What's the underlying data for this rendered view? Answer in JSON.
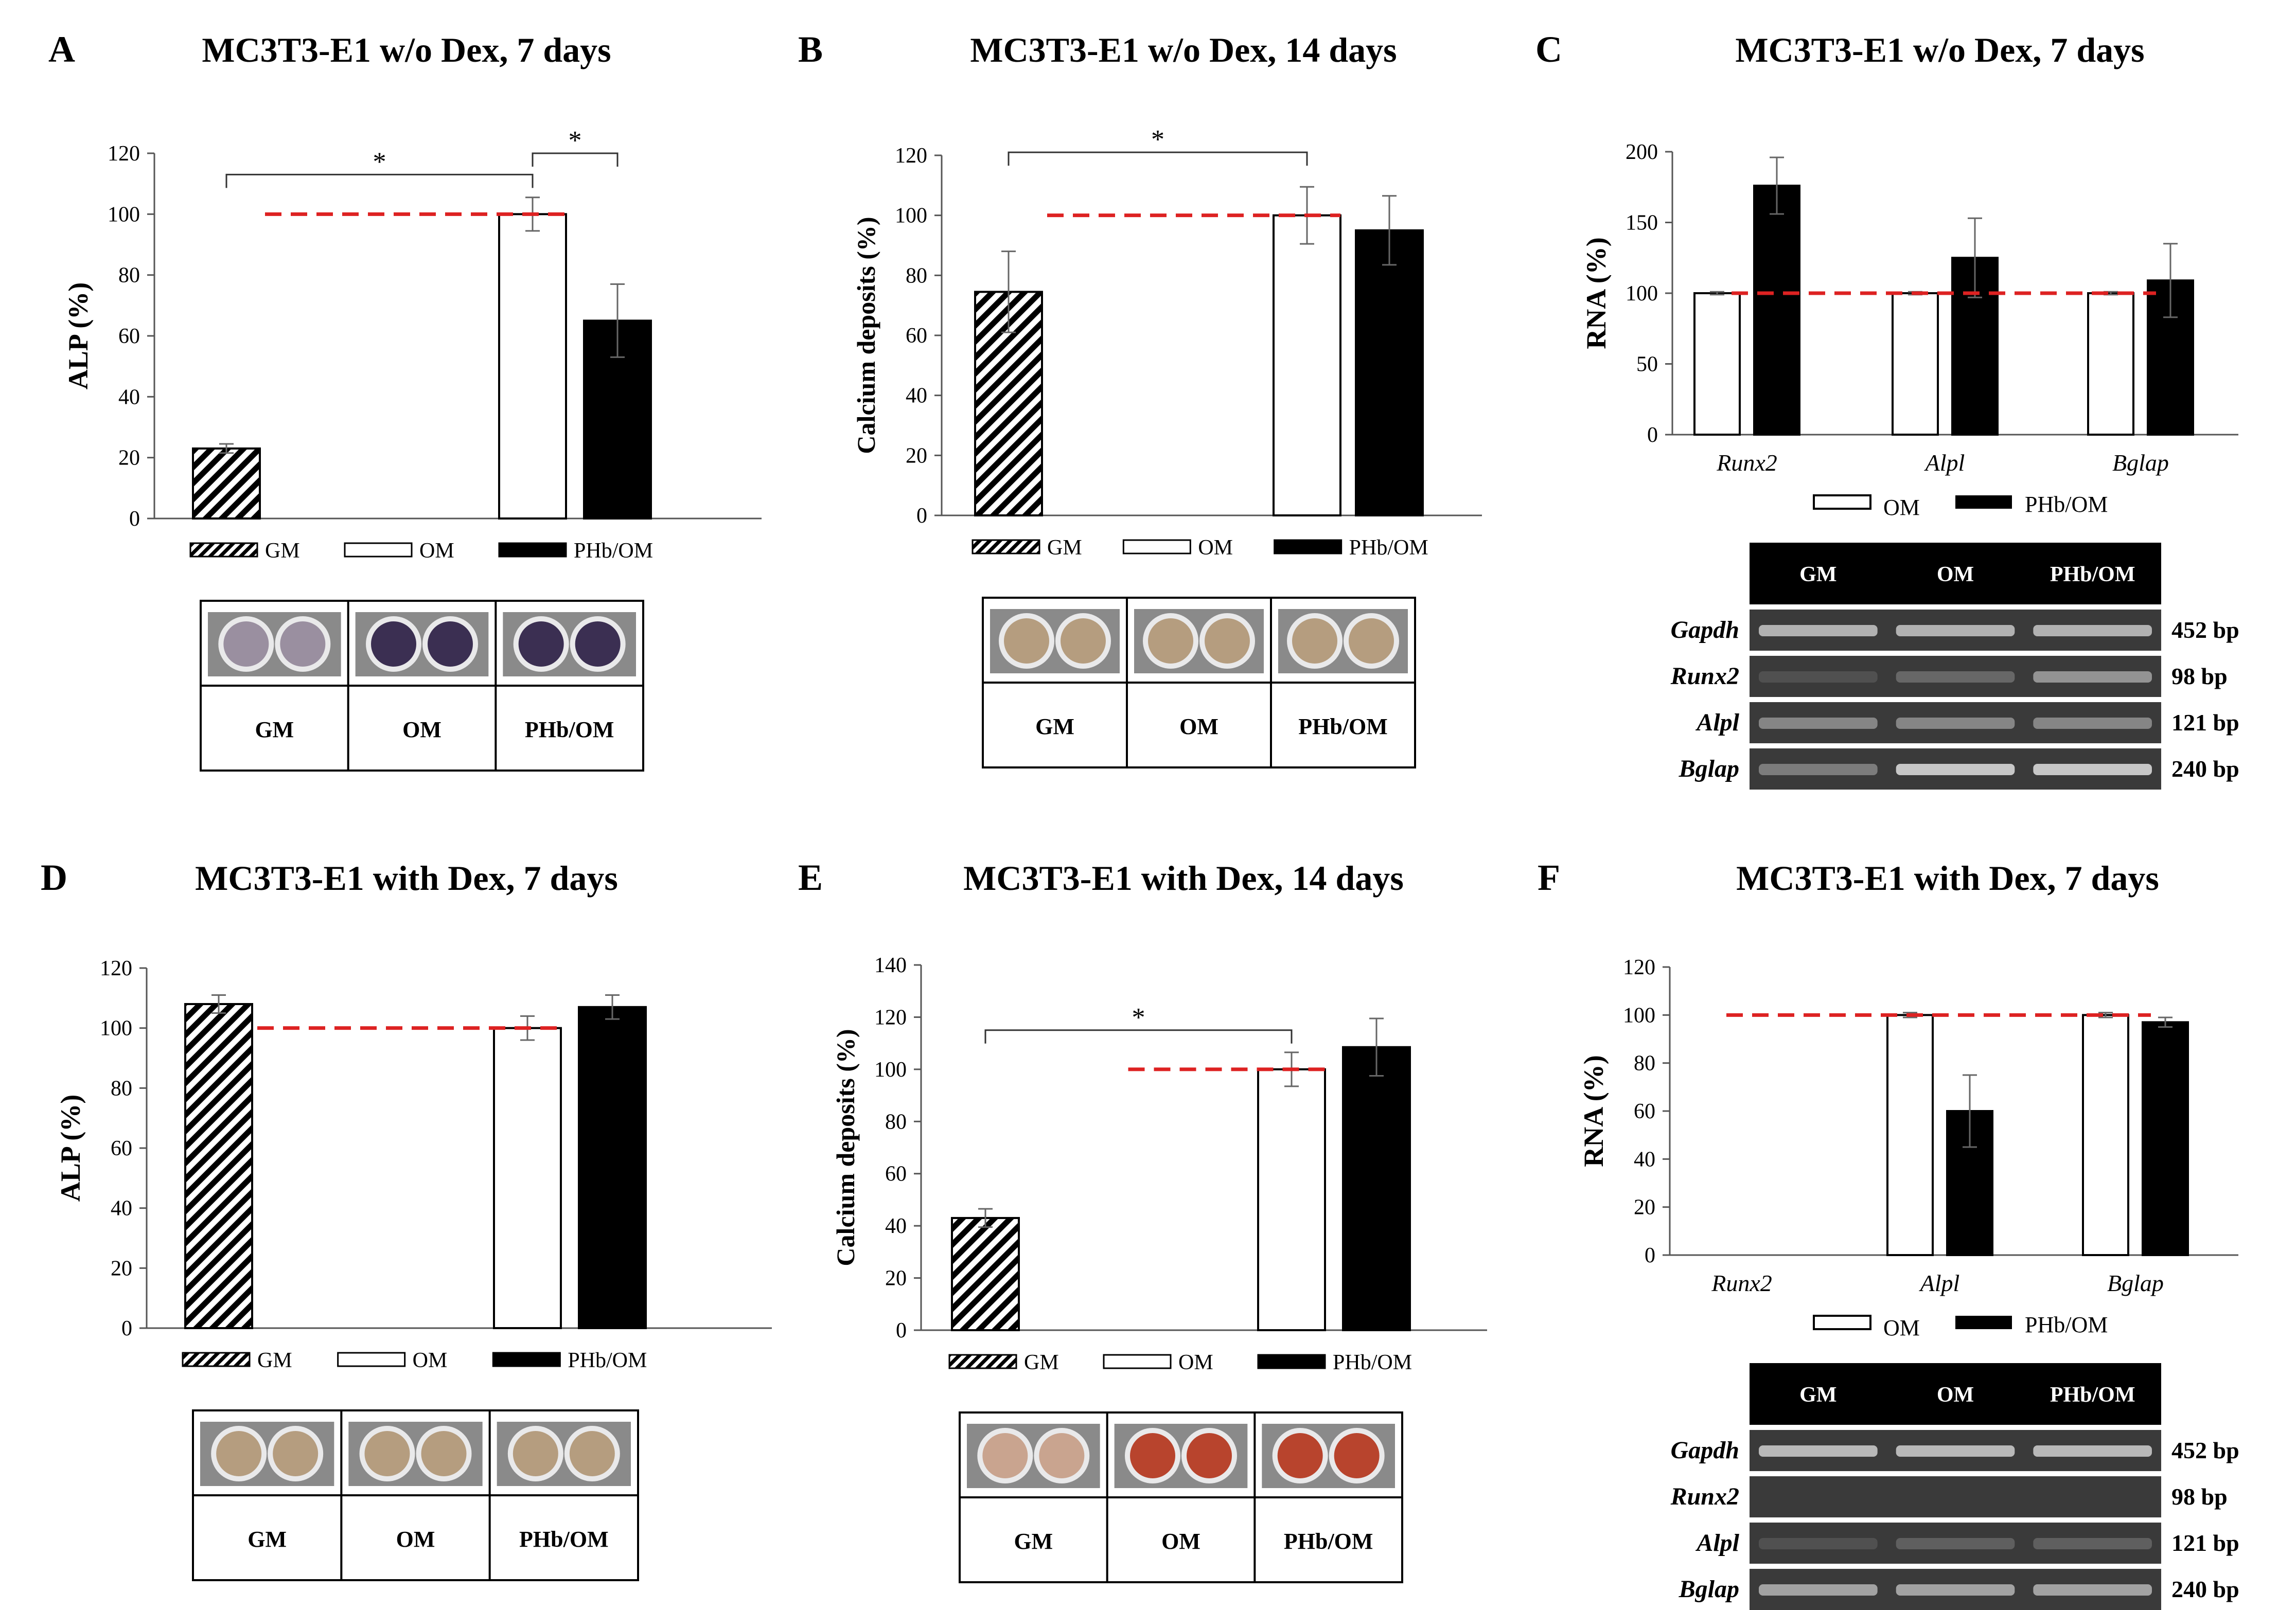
{
  "colors": {
    "bar_om": "#ffffff",
    "bar_phb": "#000000",
    "reference_line": "#dd2222",
    "gel_band": "#cfcfcf",
    "gel_bg": "#3a3a3a",
    "alp_dark": "#3b2f52",
    "alp_light": "#9a8fa0",
    "calcium_beige": "#b59d7f",
    "alizarin_red": "#b8442d"
  },
  "chart_data": [
    {
      "panel": "A",
      "type": "bar",
      "title": "MC3T3-E1 w/o Dex, 7 days",
      "ylabel": "ALP (%)",
      "ylim": [
        0,
        120
      ],
      "yticks": [
        "0",
        "20",
        "40",
        "60",
        "80",
        "100",
        "120"
      ],
      "series": [
        {
          "name": "GM",
          "value": 23,
          "error": 1.5,
          "pattern": "hatch"
        },
        {
          "name": "OM",
          "value": 100,
          "error": 5.5,
          "pattern": "white"
        },
        {
          "name": "PHb/OM",
          "value": 65,
          "error": 12,
          "pattern": "black"
        }
      ],
      "reference": 100,
      "ref_from": "GM",
      "significance": [
        {
          "from": "GM",
          "to": "OM",
          "label": "*",
          "level": 113
        },
        {
          "from": "OM",
          "to": "PHb/OM",
          "label": "*",
          "level": 120
        }
      ],
      "legend": [
        "GM",
        "OM",
        "PHb/OM"
      ],
      "wells": {
        "labels": [
          "GM",
          "OM",
          "PHb/OM"
        ],
        "tones": [
          "alp_light",
          "alp_dark",
          "alp_dark"
        ]
      }
    },
    {
      "panel": "B",
      "type": "bar",
      "title": "MC3T3-E1 w/o Dex, 14 days",
      "ylabel": "Calcium deposits (%)",
      "ylim": [
        0,
        120
      ],
      "yticks": [
        "0",
        "20",
        "40",
        "60",
        "80",
        "100",
        "120"
      ],
      "series": [
        {
          "name": "GM",
          "value": 74.5,
          "error": 13.5,
          "pattern": "hatch"
        },
        {
          "name": "OM",
          "value": 100,
          "error": 9.5,
          "pattern": "white"
        },
        {
          "name": "PHb/OM",
          "value": 95,
          "error": 11.5,
          "pattern": "black"
        }
      ],
      "reference": 100,
      "ref_from": "GM",
      "significance": [
        {
          "from": "GM",
          "to": "OM",
          "label": "*",
          "level": 121
        }
      ],
      "legend": [
        "GM",
        "OM",
        "PHb/OM"
      ],
      "wells": {
        "labels": [
          "GM",
          "OM",
          "PHb/OM"
        ],
        "tones": [
          "calcium_beige",
          "calcium_beige",
          "calcium_beige"
        ]
      }
    },
    {
      "panel": "C",
      "type": "bar",
      "title": "MC3T3-E1 w/o Dex, 7 days",
      "ylabel": "RNA (%)",
      "ylim": [
        0,
        200
      ],
      "yticks": [
        "0",
        "50",
        "100",
        "150",
        "200"
      ],
      "categories": [
        "Runx2",
        "Alpl",
        "Bglap"
      ],
      "series": [
        {
          "name": "OM",
          "values": [
            100,
            100,
            100
          ],
          "errors": [
            1,
            1,
            1
          ]
        },
        {
          "name": "PHb/OM",
          "values": [
            176,
            125,
            109
          ],
          "errors": [
            20,
            28,
            26
          ]
        }
      ],
      "reference": 100,
      "legend": [
        "OM",
        "PHb/OM"
      ],
      "gel": {
        "header": [
          "GM",
          "OM",
          "PHb/OM"
        ],
        "rows": [
          {
            "gene": "Gapdh",
            "bp": "452 bp",
            "intensity": [
              0.8,
              0.8,
              0.8
            ]
          },
          {
            "gene": "Runx2",
            "bp": "98 bp",
            "intensity": [
              0.15,
              0.3,
              0.6
            ]
          },
          {
            "gene": "Alpl",
            "bp": "121 bp",
            "intensity": [
              0.5,
              0.5,
              0.5
            ]
          },
          {
            "gene": "Bglap",
            "bp": "240 bp",
            "intensity": [
              0.45,
              0.95,
              0.95
            ]
          }
        ]
      }
    },
    {
      "panel": "D",
      "type": "bar",
      "title": "MC3T3-E1 with Dex, 7 days",
      "ylabel": "ALP (%)",
      "ylim": [
        0,
        120
      ],
      "yticks": [
        "0",
        "20",
        "40",
        "60",
        "80",
        "100",
        "120"
      ],
      "series": [
        {
          "name": "GM",
          "value": 108,
          "error": 3,
          "pattern": "hatch"
        },
        {
          "name": "OM",
          "value": 100,
          "error": 4,
          "pattern": "white"
        },
        {
          "name": "PHb/OM",
          "value": 107,
          "error": 4,
          "pattern": "black"
        }
      ],
      "reference": 100,
      "ref_from": "GM",
      "significance": [],
      "legend": [
        "GM",
        "OM",
        "PHb/OM"
      ],
      "wells": {
        "labels": [
          "GM",
          "OM",
          "PHb/OM"
        ],
        "tones": [
          "calcium_beige",
          "calcium_beige",
          "calcium_beige"
        ]
      }
    },
    {
      "panel": "E",
      "type": "bar",
      "title": "MC3T3-E1 with Dex, 14 days",
      "ylabel": "Calcium deposits (%)",
      "ylim": [
        0,
        140
      ],
      "yticks": [
        "0",
        "20",
        "40",
        "60",
        "80",
        "100",
        "120",
        "140"
      ],
      "series": [
        {
          "name": "GM",
          "value": 43,
          "error": 3.5,
          "pattern": "hatch"
        },
        {
          "name": "OM",
          "value": 100,
          "error": 6.5,
          "pattern": "white"
        },
        {
          "name": "PHb/OM",
          "value": 108.5,
          "error": 11,
          "pattern": "black"
        }
      ],
      "reference": 100,
      "ref_from": "mid",
      "significance": [
        {
          "from": "GM",
          "to": "OM",
          "label": "*",
          "level": 115
        }
      ],
      "legend": [
        "GM",
        "OM",
        "PHb/OM"
      ],
      "wells": {
        "labels": [
          "GM",
          "OM",
          "PHb/OM"
        ],
        "tones": [
          "alizarin_light",
          "alizarin_red",
          "alizarin_red"
        ]
      }
    },
    {
      "panel": "F",
      "type": "bar",
      "title": "MC3T3-E1 with Dex, 7 days",
      "ylabel": "RNA (%)",
      "ylim": [
        0,
        120
      ],
      "yticks": [
        "0",
        "20",
        "40",
        "60",
        "80",
        "100",
        "120"
      ],
      "categories": [
        "Runx2",
        "Alpl",
        "Bglap"
      ],
      "series": [
        {
          "name": "OM",
          "values": [
            0,
            100,
            100
          ],
          "errors": [
            0,
            1,
            1
          ]
        },
        {
          "name": "PHb/OM",
          "values": [
            0,
            60,
            97
          ],
          "errors": [
            0,
            15,
            2
          ]
        }
      ],
      "reference": 100,
      "legend": [
        "OM",
        "PHb/OM"
      ],
      "gel": {
        "header": [
          "GM",
          "OM",
          "PHb/OM"
        ],
        "rows": [
          {
            "gene": "Gapdh",
            "bp": "452 bp",
            "intensity": [
              0.85,
              0.85,
              0.85
            ]
          },
          {
            "gene": "Runx2",
            "bp": "98 bp",
            "intensity": [
              0,
              0,
              0
            ]
          },
          {
            "gene": "Alpl",
            "bp": "121 bp",
            "intensity": [
              0.15,
              0.25,
              0.25
            ]
          },
          {
            "gene": "Bglap",
            "bp": "240 bp",
            "intensity": [
              0.7,
              0.7,
              0.7
            ]
          }
        ]
      }
    }
  ]
}
